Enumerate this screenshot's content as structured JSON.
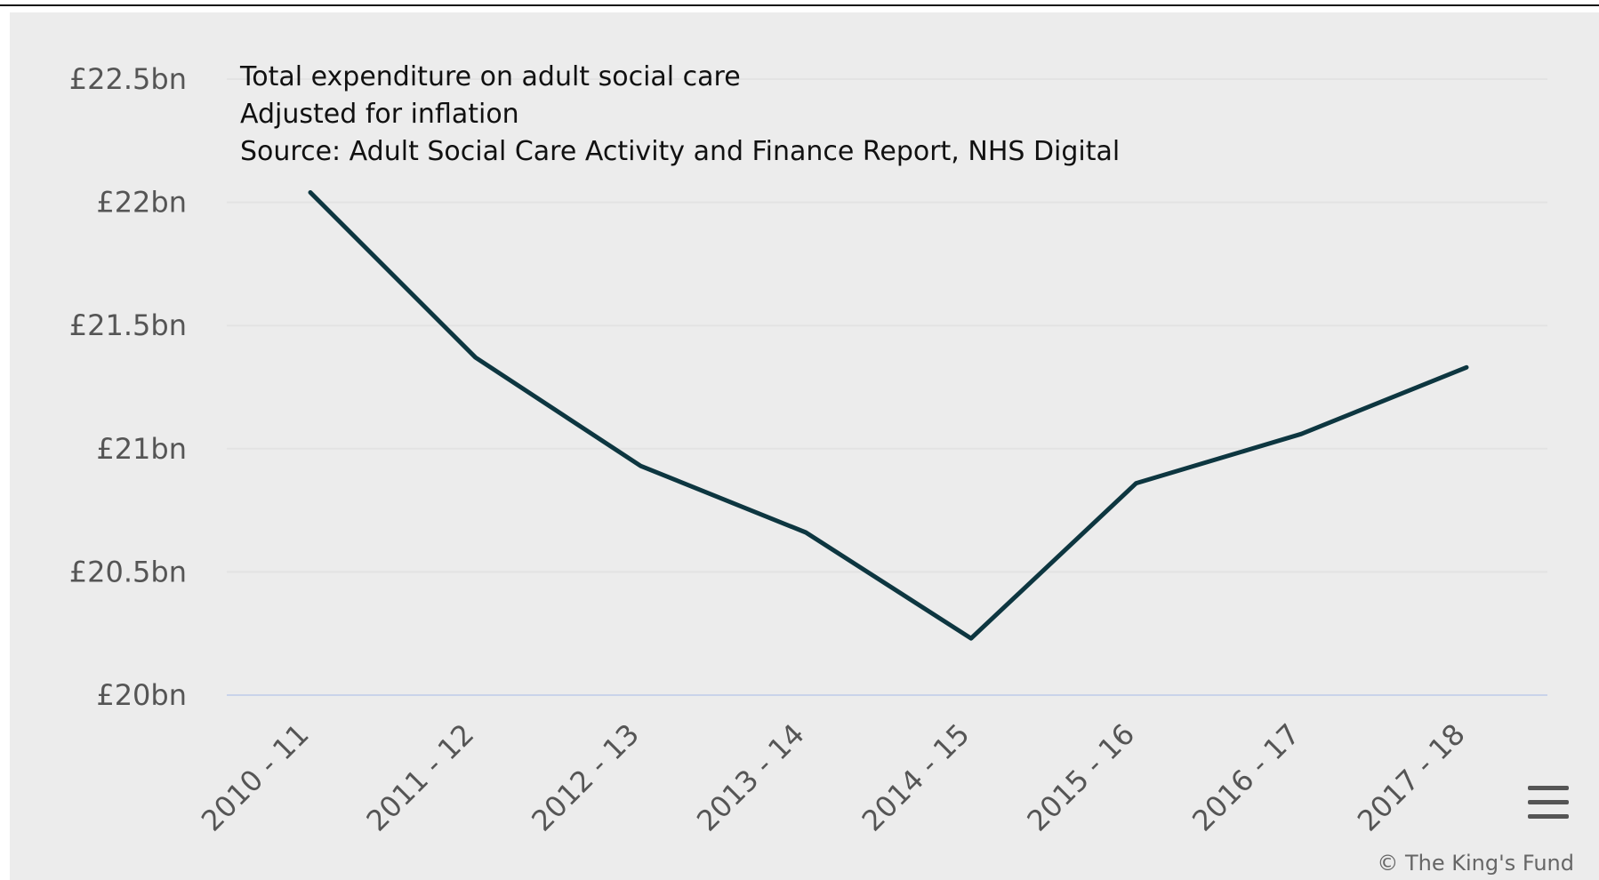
{
  "chart_data": {
    "type": "line",
    "title": "Total expenditure on adult social care",
    "subtitle": "Adjusted for inflation",
    "source": "Source: Adult Social Care Activity and Finance Report, NHS Digital",
    "categories": [
      "2010 - 11",
      "2011 - 12",
      "2012 - 13",
      "2013 - 14",
      "2014 - 15",
      "2015 - 16",
      "2016 - 17",
      "2017 - 18"
    ],
    "series": [
      {
        "values": [
          22.04,
          21.37,
          20.93,
          20.66,
          20.23,
          20.86,
          21.06,
          21.33
        ]
      }
    ],
    "xlabel": "",
    "ylabel": "",
    "ylim": [
      20,
      22.5
    ],
    "y_ticks": [
      "£20bn",
      "£20.5bn",
      "£21bn",
      "£21.5bn",
      "£22bn",
      "£22.5bn"
    ],
    "grid": true,
    "line_color": "#0d3640",
    "credit": "© The King's Fund"
  }
}
